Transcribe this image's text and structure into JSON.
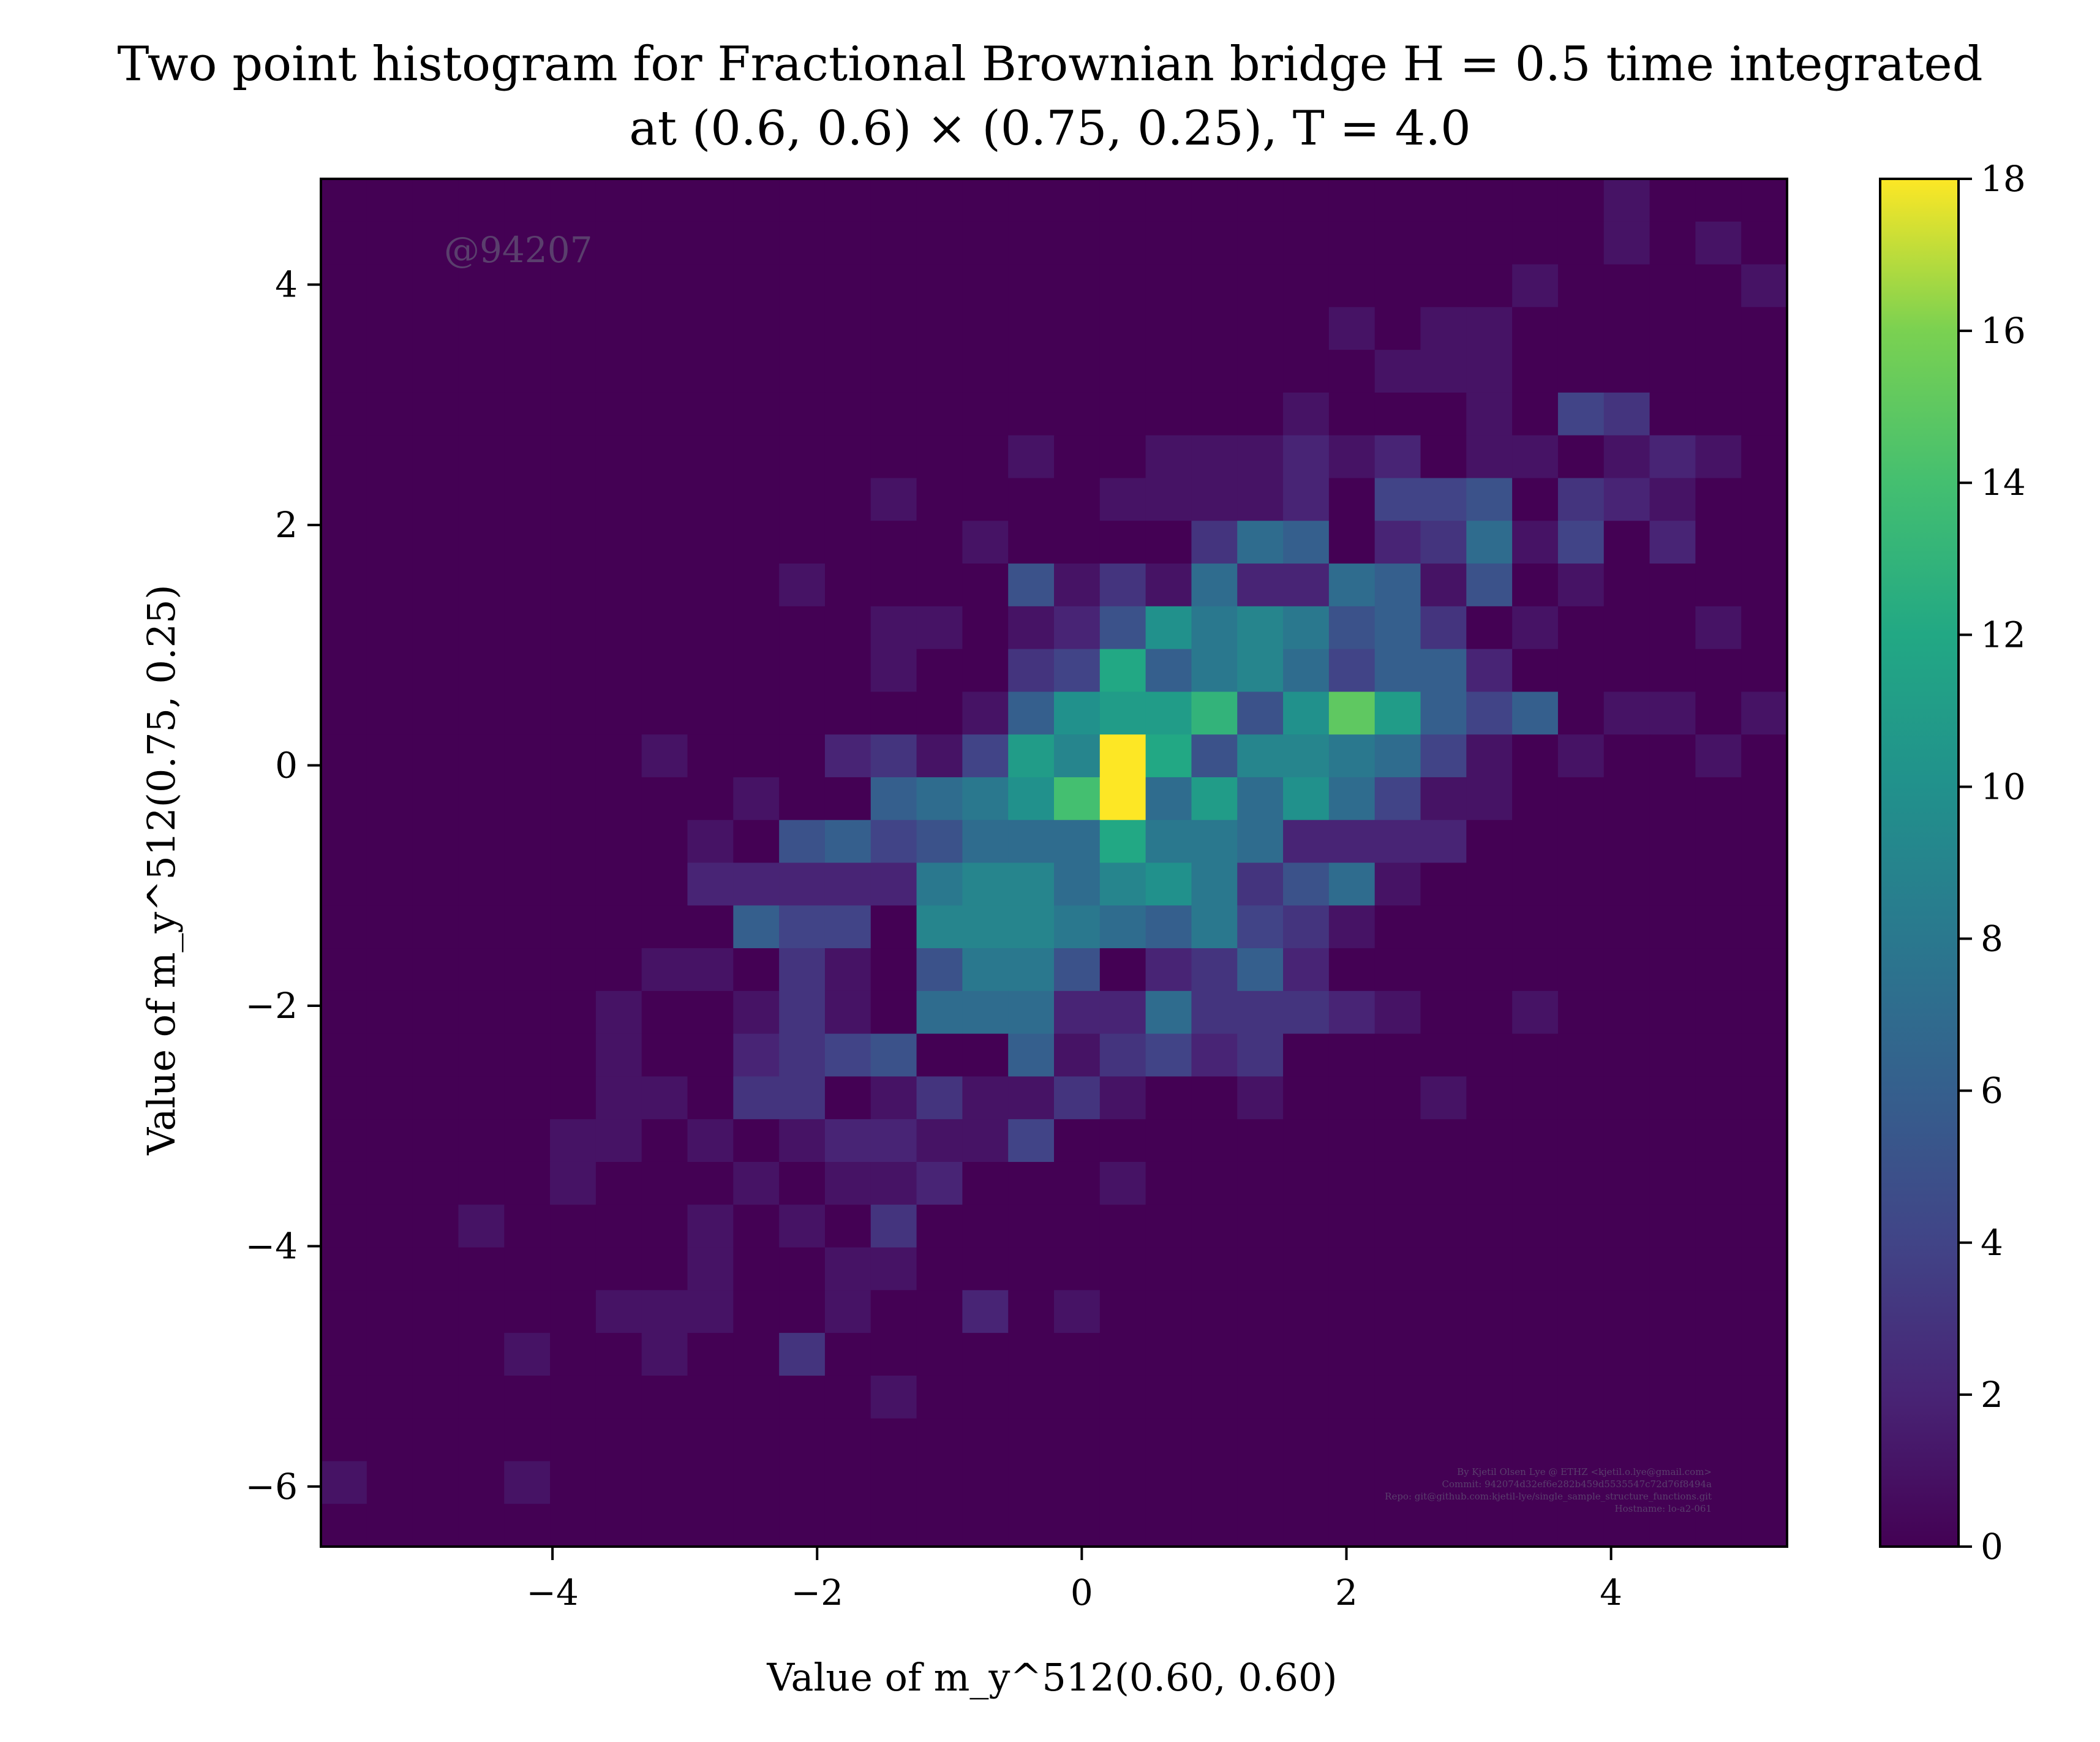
{
  "chart_data": {
    "type": "heatmap",
    "title_line1": "Two point histogram for Fractional Brownian bridge H = 0.5 time integrated",
    "title_line2": "at (0.6, 0.6) × (0.75, 0.25), T = 4.0",
    "xlabel": "Value of m_y^512(0.60, 0.60)",
    "ylabel": "Value of m_y^512(0.75, 0.25)",
    "xlim": [
      -5.75,
      5.33
    ],
    "ylim": [
      -6.5,
      4.88
    ],
    "xticks": [
      -4,
      -2,
      0,
      2,
      4
    ],
    "yticks": [
      -6,
      -4,
      -2,
      0,
      2,
      4
    ],
    "x_tick_labels": [
      "−4",
      "−2",
      "0",
      "2",
      "4"
    ],
    "y_tick_labels": [
      "−6",
      "−4",
      "−2",
      "0",
      "2",
      "4"
    ],
    "colorbar": {
      "min": 0,
      "max": 18,
      "ticks": [
        0,
        2,
        4,
        6,
        8,
        10,
        12,
        14,
        16,
        18
      ],
      "tick_labels": [
        "0",
        "2",
        "4",
        "6",
        "8",
        "10",
        "12",
        "14",
        "16",
        "18"
      ],
      "colormap": "viridis"
    },
    "bins_x": 32,
    "bins_y": 32,
    "counts_top_to_bottom": [
      [
        0,
        0,
        0,
        0,
        0,
        0,
        0,
        0,
        0,
        0,
        0,
        0,
        0,
        0,
        0,
        0,
        0,
        0,
        0,
        0,
        0,
        0,
        0,
        0,
        0,
        0,
        0,
        0,
        1,
        0,
        0,
        0
      ],
      [
        0,
        0,
        0,
        0,
        0,
        0,
        0,
        0,
        0,
        0,
        0,
        0,
        0,
        0,
        0,
        0,
        0,
        0,
        0,
        0,
        0,
        0,
        0,
        0,
        0,
        0,
        0,
        0,
        1,
        0,
        1,
        0
      ],
      [
        0,
        0,
        0,
        0,
        0,
        0,
        0,
        0,
        0,
        0,
        0,
        0,
        0,
        0,
        0,
        0,
        0,
        0,
        0,
        0,
        0,
        0,
        0,
        0,
        0,
        0,
        1,
        0,
        0,
        0,
        0,
        1
      ],
      [
        0,
        0,
        0,
        0,
        0,
        0,
        0,
        0,
        0,
        0,
        0,
        0,
        0,
        0,
        0,
        0,
        0,
        0,
        0,
        0,
        0,
        0,
        1,
        0,
        1,
        1,
        0,
        0,
        0,
        0,
        0,
        0
      ],
      [
        0,
        0,
        0,
        0,
        0,
        0,
        0,
        0,
        0,
        0,
        0,
        0,
        0,
        0,
        0,
        0,
        0,
        0,
        0,
        0,
        0,
        0,
        0,
        1,
        1,
        1,
        0,
        0,
        0,
        0,
        0,
        0
      ],
      [
        0,
        0,
        0,
        0,
        0,
        0,
        0,
        0,
        0,
        0,
        0,
        0,
        0,
        0,
        0,
        0,
        0,
        0,
        0,
        0,
        0,
        1,
        0,
        0,
        0,
        1,
        0,
        4,
        3,
        0,
        0,
        0
      ],
      [
        0,
        0,
        0,
        0,
        0,
        0,
        0,
        0,
        0,
        0,
        0,
        0,
        0,
        0,
        0,
        1,
        0,
        0,
        1,
        1,
        1,
        2,
        1,
        2,
        0,
        1,
        1,
        0,
        1,
        2,
        1,
        0
      ],
      [
        0,
        0,
        0,
        0,
        0,
        0,
        0,
        0,
        0,
        0,
        0,
        0,
        1,
        0,
        0,
        0,
        0,
        1,
        1,
        1,
        1,
        2,
        0,
        4,
        4,
        5,
        0,
        3,
        2,
        1,
        0,
        0
      ],
      [
        0,
        0,
        0,
        0,
        0,
        0,
        0,
        0,
        0,
        0,
        0,
        0,
        0,
        0,
        1,
        0,
        0,
        0,
        0,
        3,
        7,
        6,
        0,
        2,
        3,
        7,
        1,
        4,
        0,
        2,
        0,
        0
      ],
      [
        0,
        0,
        0,
        0,
        0,
        0,
        0,
        0,
        0,
        0,
        1,
        0,
        0,
        0,
        0,
        5,
        1,
        3,
        1,
        7,
        2,
        2,
        7,
        6,
        1,
        5,
        0,
        1,
        0,
        0,
        0,
        0
      ],
      [
        0,
        0,
        0,
        0,
        0,
        0,
        0,
        0,
        0,
        0,
        0,
        0,
        1,
        1,
        0,
        1,
        2,
        5,
        10,
        8,
        9,
        8,
        5,
        6,
        3,
        0,
        1,
        0,
        0,
        0,
        1,
        0
      ],
      [
        0,
        0,
        0,
        0,
        0,
        0,
        0,
        0,
        0,
        0,
        0,
        0,
        1,
        0,
        0,
        3,
        4,
        12,
        6,
        8,
        9,
        7,
        4,
        6,
        6,
        2,
        0,
        0,
        0,
        0,
        0,
        0
      ],
      [
        0,
        0,
        0,
        0,
        0,
        0,
        0,
        0,
        0,
        0,
        0,
        0,
        0,
        0,
        1,
        6,
        10,
        11,
        11,
        13,
        5,
        10,
        15,
        11,
        6,
        4,
        6,
        0,
        1,
        1,
        0,
        1
      ],
      [
        0,
        0,
        0,
        0,
        0,
        0,
        0,
        1,
        0,
        0,
        0,
        2,
        3,
        1,
        4,
        11,
        9,
        18,
        12,
        5,
        9,
        9,
        8,
        7,
        4,
        1,
        0,
        1,
        0,
        0,
        1,
        0
      ],
      [
        0,
        0,
        0,
        0,
        0,
        0,
        0,
        0,
        0,
        1,
        0,
        0,
        6,
        7,
        8,
        10,
        14,
        18,
        7,
        11,
        7,
        10,
        7,
        4,
        1,
        1,
        0,
        0,
        0,
        0,
        0,
        0
      ],
      [
        0,
        0,
        0,
        0,
        0,
        0,
        0,
        0,
        1,
        0,
        5,
        6,
        4,
        5,
        7,
        7,
        7,
        12,
        8,
        8,
        7,
        2,
        2,
        2,
        2,
        0,
        0,
        0,
        0,
        0,
        0,
        0
      ],
      [
        0,
        0,
        0,
        0,
        0,
        0,
        0,
        0,
        2,
        2,
        2,
        2,
        2,
        8,
        9,
        9,
        7,
        9,
        10,
        8,
        3,
        5,
        7,
        1,
        0,
        0,
        0,
        0,
        0,
        0,
        0,
        0
      ],
      [
        0,
        0,
        0,
        0,
        0,
        0,
        0,
        0,
        0,
        6,
        4,
        4,
        0,
        9,
        9,
        9,
        8,
        7,
        6,
        8,
        4,
        3,
        1,
        0,
        0,
        0,
        0,
        0,
        0,
        0,
        0,
        0
      ],
      [
        0,
        0,
        0,
        0,
        0,
        0,
        0,
        1,
        1,
        0,
        3,
        1,
        0,
        5,
        8,
        8,
        5,
        0,
        2,
        3,
        6,
        2,
        0,
        0,
        0,
        0,
        0,
        0,
        0,
        0,
        0,
        0
      ],
      [
        0,
        0,
        0,
        0,
        0,
        0,
        1,
        0,
        0,
        1,
        3,
        1,
        0,
        7,
        7,
        7,
        2,
        2,
        7,
        3,
        3,
        3,
        2,
        1,
        0,
        0,
        1,
        0,
        0,
        0,
        0,
        0
      ],
      [
        0,
        0,
        0,
        0,
        0,
        0,
        1,
        0,
        0,
        2,
        3,
        4,
        5,
        0,
        0,
        6,
        1,
        3,
        4,
        2,
        3,
        0,
        0,
        0,
        0,
        0,
        0,
        0,
        0,
        0,
        0,
        0
      ],
      [
        0,
        0,
        0,
        0,
        0,
        0,
        1,
        1,
        0,
        3,
        3,
        0,
        1,
        3,
        1,
        1,
        3,
        1,
        0,
        0,
        1,
        0,
        0,
        0,
        1,
        0,
        0,
        0,
        0,
        0,
        0,
        0
      ],
      [
        0,
        0,
        0,
        0,
        0,
        1,
        1,
        0,
        1,
        0,
        1,
        2,
        2,
        1,
        1,
        4,
        0,
        0,
        0,
        0,
        0,
        0,
        0,
        0,
        0,
        0,
        0,
        0,
        0,
        0,
        0,
        0
      ],
      [
        0,
        0,
        0,
        0,
        0,
        1,
        0,
        0,
        0,
        1,
        0,
        1,
        1,
        2,
        0,
        0,
        0,
        1,
        0,
        0,
        0,
        0,
        0,
        0,
        0,
        0,
        0,
        0,
        0,
        0,
        0,
        0
      ],
      [
        0,
        0,
        0,
        1,
        0,
        0,
        0,
        0,
        1,
        0,
        1,
        0,
        3,
        0,
        0,
        0,
        0,
        0,
        0,
        0,
        0,
        0,
        0,
        0,
        0,
        0,
        0,
        0,
        0,
        0,
        0,
        0
      ],
      [
        0,
        0,
        0,
        0,
        0,
        0,
        0,
        0,
        1,
        0,
        0,
        1,
        1,
        0,
        0,
        0,
        0,
        0,
        0,
        0,
        0,
        0,
        0,
        0,
        0,
        0,
        0,
        0,
        0,
        0,
        0,
        0
      ],
      [
        0,
        0,
        0,
        0,
        0,
        0,
        1,
        1,
        1,
        0,
        0,
        1,
        0,
        0,
        2,
        0,
        1,
        0,
        0,
        0,
        0,
        0,
        0,
        0,
        0,
        0,
        0,
        0,
        0,
        0,
        0,
        0
      ],
      [
        0,
        0,
        0,
        0,
        1,
        0,
        0,
        1,
        0,
        0,
        3,
        0,
        0,
        0,
        0,
        0,
        0,
        0,
        0,
        0,
        0,
        0,
        0,
        0,
        0,
        0,
        0,
        0,
        0,
        0,
        0,
        0
      ],
      [
        0,
        0,
        0,
        0,
        0,
        0,
        0,
        0,
        0,
        0,
        0,
        0,
        1,
        0,
        0,
        0,
        0,
        0,
        0,
        0,
        0,
        0,
        0,
        0,
        0,
        0,
        0,
        0,
        0,
        0,
        0,
        0
      ],
      [
        0,
        0,
        0,
        0,
        0,
        0,
        0,
        0,
        0,
        0,
        0,
        0,
        0,
        0,
        0,
        0,
        0,
        0,
        0,
        0,
        0,
        0,
        0,
        0,
        0,
        0,
        0,
        0,
        0,
        0,
        0,
        0
      ],
      [
        1,
        0,
        0,
        0,
        1,
        0,
        0,
        0,
        0,
        0,
        0,
        0,
        0,
        0,
        0,
        0,
        0,
        0,
        0,
        0,
        0,
        0,
        0,
        0,
        0,
        0,
        0,
        0,
        0,
        0,
        0,
        0
      ],
      [
        0,
        0,
        0,
        0,
        0,
        0,
        0,
        0,
        0,
        0,
        0,
        0,
        0,
        0,
        0,
        0,
        0,
        0,
        0,
        0,
        0,
        0,
        0,
        0,
        0,
        0,
        0,
        0,
        0,
        0,
        0,
        0
      ]
    ]
  },
  "watermark": "@94207",
  "metadata_lines": [
    "By Kjetil Olsen Lye @ ETHZ <kjetil.o.lye@gmail.com>",
    "Commit: 942074d32ef6e282b459d5535547c72d76f8494a",
    "Repo: git@github.com:kjetil-lye/single_sample_structure_functions.git",
    "Hostname: lo-a2-061"
  ]
}
